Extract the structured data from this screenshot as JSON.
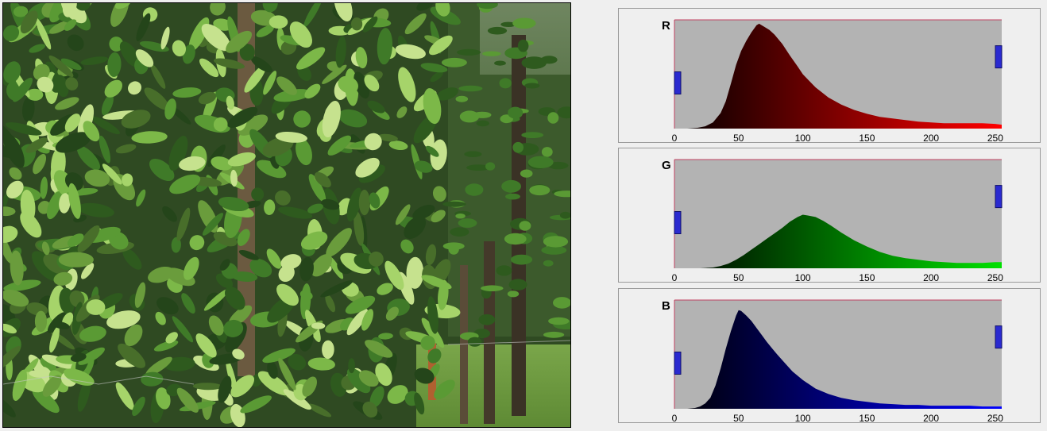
{
  "channels": [
    {
      "label": "R",
      "gradient_start": "#000000",
      "gradient_end": "#ff0000",
      "histogram": [
        [
          0,
          0
        ],
        [
          10,
          0
        ],
        [
          18,
          1
        ],
        [
          24,
          3
        ],
        [
          30,
          8
        ],
        [
          36,
          20
        ],
        [
          40,
          35
        ],
        [
          44,
          58
        ],
        [
          48,
          82
        ],
        [
          52,
          100
        ],
        [
          56,
          113
        ],
        [
          60,
          124
        ],
        [
          64,
          133
        ],
        [
          66,
          135
        ],
        [
          70,
          131
        ],
        [
          74,
          127
        ],
        [
          78,
          121
        ],
        [
          84,
          109
        ],
        [
          90,
          94
        ],
        [
          96,
          80
        ],
        [
          100,
          70
        ],
        [
          110,
          53
        ],
        [
          120,
          40
        ],
        [
          130,
          31
        ],
        [
          140,
          24
        ],
        [
          150,
          19
        ],
        [
          160,
          15
        ],
        [
          170,
          13
        ],
        [
          180,
          11
        ],
        [
          190,
          9
        ],
        [
          200,
          8
        ],
        [
          210,
          7
        ],
        [
          220,
          7
        ],
        [
          230,
          7
        ],
        [
          240,
          7
        ],
        [
          250,
          6
        ],
        [
          255,
          5
        ]
      ],
      "marker_left_level": 0.42,
      "marker_right_level": 0.66
    },
    {
      "label": "G",
      "gradient_start": "#000000",
      "gradient_end": "#00e000",
      "histogram": [
        [
          0,
          0
        ],
        [
          20,
          0
        ],
        [
          30,
          1
        ],
        [
          36,
          3
        ],
        [
          42,
          6
        ],
        [
          48,
          11
        ],
        [
          54,
          17
        ],
        [
          60,
          24
        ],
        [
          66,
          31
        ],
        [
          72,
          38
        ],
        [
          78,
          45
        ],
        [
          84,
          52
        ],
        [
          90,
          60
        ],
        [
          96,
          66
        ],
        [
          100,
          69
        ],
        [
          104,
          68
        ],
        [
          110,
          66
        ],
        [
          116,
          61
        ],
        [
          122,
          55
        ],
        [
          130,
          46
        ],
        [
          140,
          36
        ],
        [
          150,
          28
        ],
        [
          160,
          21
        ],
        [
          170,
          16
        ],
        [
          180,
          13
        ],
        [
          190,
          11
        ],
        [
          200,
          9
        ],
        [
          210,
          8
        ],
        [
          220,
          7
        ],
        [
          230,
          7
        ],
        [
          240,
          7
        ],
        [
          250,
          8
        ],
        [
          255,
          8
        ]
      ],
      "marker_left_level": 0.42,
      "marker_right_level": 0.66
    },
    {
      "label": "B",
      "gradient_start": "#000000",
      "gradient_end": "#0000ff",
      "histogram": [
        [
          0,
          0
        ],
        [
          10,
          0
        ],
        [
          16,
          1
        ],
        [
          20,
          3
        ],
        [
          24,
          7
        ],
        [
          28,
          14
        ],
        [
          32,
          30
        ],
        [
          36,
          52
        ],
        [
          40,
          77
        ],
        [
          44,
          100
        ],
        [
          48,
          120
        ],
        [
          50,
          127
        ],
        [
          52,
          126
        ],
        [
          56,
          120
        ],
        [
          60,
          113
        ],
        [
          64,
          104
        ],
        [
          68,
          95
        ],
        [
          72,
          86
        ],
        [
          76,
          78
        ],
        [
          80,
          70
        ],
        [
          86,
          59
        ],
        [
          92,
          48
        ],
        [
          100,
          37
        ],
        [
          110,
          26
        ],
        [
          120,
          19
        ],
        [
          130,
          14
        ],
        [
          140,
          11
        ],
        [
          150,
          9
        ],
        [
          160,
          7
        ],
        [
          170,
          6
        ],
        [
          180,
          5
        ],
        [
          190,
          5
        ],
        [
          200,
          4
        ],
        [
          210,
          4
        ],
        [
          220,
          4
        ],
        [
          230,
          4
        ],
        [
          240,
          3
        ],
        [
          250,
          3
        ],
        [
          255,
          3
        ]
      ],
      "marker_left_level": 0.42,
      "marker_right_level": 0.66
    }
  ],
  "x_ticks": [
    "0",
    "50",
    "100",
    "150",
    "200",
    "250"
  ],
  "x_tick_values": [
    0,
    50,
    100,
    150,
    200,
    250
  ],
  "x_range": [
    0,
    255
  ],
  "y_max": 140,
  "colors": {
    "plot_background": "#b3b3b3",
    "marker": "#2a2ad0",
    "frame_line": "#c04060"
  }
}
